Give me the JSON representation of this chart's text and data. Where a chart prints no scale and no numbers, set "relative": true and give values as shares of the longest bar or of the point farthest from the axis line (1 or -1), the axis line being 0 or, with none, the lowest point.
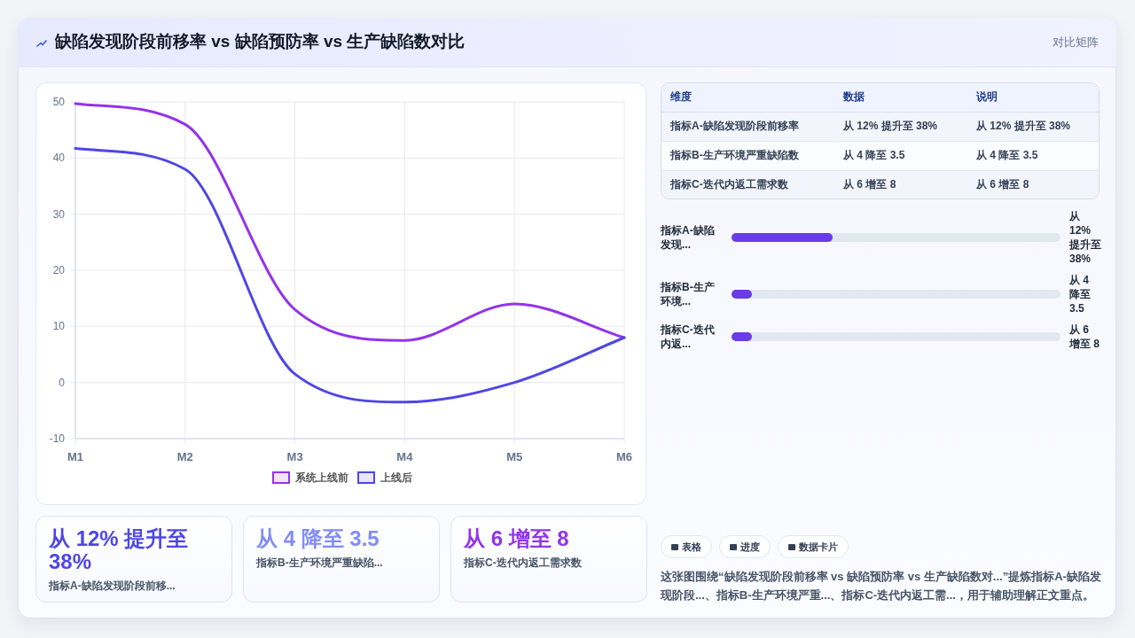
{
  "chart_data": [
    {
      "type": "other",
      "title": "缺陷发现阶段前移率 vs 缺陷预防率 vs 生产缺陷数对比",
      "annotations": [
        "对比矩阵"
      ]
    },
    {
      "type": "line",
      "categories": [
        "M1",
        "M2",
        "M3",
        "M4",
        "M5",
        "M6"
      ],
      "series": [
        {
          "name": "系统上线前",
          "color": "#9333ea",
          "values": [
            49.7,
            46,
            13,
            7.5,
            14,
            8
          ]
        },
        {
          "name": "上线后",
          "color": "#4f46e5",
          "values": [
            41.7,
            38,
            1.5,
            -3.5,
            0,
            8
          ]
        }
      ],
      "ylim": [
        -10,
        50
      ],
      "yticks": [
        -10,
        0,
        10,
        20,
        30,
        40,
        50
      ],
      "grid": true,
      "legend": "bottom"
    },
    {
      "type": "other",
      "categories": [
        "维度",
        "数据",
        "说明"
      ],
      "annotations": [
        "指标A-缺陷发现阶段前移率",
        "从 12% 提升至 38%",
        "从 12% 提升至 38%",
        "指标B-生产环境严重缺陷数",
        "从 4 降至 3.5",
        "从 4 降至 3.5",
        "指标C-迭代内返工需求数",
        "从 6 增至 8",
        "从 6 增至 8"
      ]
    },
    {
      "type": "bar",
      "orientation": "horizontal",
      "relative": true,
      "categories": [
        "指标A-缺陷发现...",
        "指标B-生产环境...",
        "指标C-迭代内返..."
      ],
      "values": [
        1,
        0.2,
        0.2
      ],
      "color": "#6a3ce8",
      "annotations": [
        "从 12% 提升至 38%",
        "从 4 降至 3.5",
        "从 6 增至 8"
      ]
    },
    {
      "type": "other",
      "categories": [
        "指标A-缺陷发现阶段前移...",
        "指标B-生产环境严重缺陷...",
        "指标C-迭代内返工需求数"
      ],
      "value_labels": [
        "从 12% 提升至 38%",
        "从 4 降至 3.5",
        "从 6 增至 8"
      ]
    },
    {
      "type": "other",
      "categories": [
        "表格",
        "进度",
        "数据卡片"
      ],
      "annotations": [
        "这张图围绕“缺陷发现阶段前移率 vs 缺陷预防率 vs 生产缺陷数对...”提炼指标A-缺陷发现阶段...、指标B-生产环境严重...、指标C-迭代内返工需...，用于辅助理解正文重点。"
      ]
    }
  ]
}
